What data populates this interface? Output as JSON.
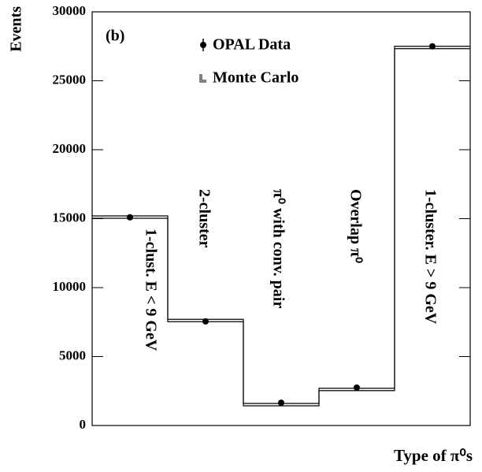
{
  "chart_data": {
    "type": "histogram-step",
    "y_label": "Events",
    "x_label": "Type of π⁰s",
    "annotation": "(b)",
    "categories": [
      "1-clust. E < 9 GeV",
      "2-cluster",
      "π⁰ with conv. pair",
      "Overlap π⁰",
      "1-cluster. E > 9 GeV"
    ],
    "series": [
      {
        "name": "OPAL Data",
        "color": "#000000",
        "values": [
          15100,
          7550,
          1650,
          2750,
          27500
        ]
      },
      {
        "name": "Monte Carlo",
        "color": "#000000",
        "values": [
          15200,
          7700,
          1600,
          2700,
          27500
        ]
      }
    ],
    "ylim": [
      0,
      30000
    ],
    "yticks": [
      0,
      5000,
      10000,
      15000,
      20000,
      25000,
      30000
    ]
  }
}
